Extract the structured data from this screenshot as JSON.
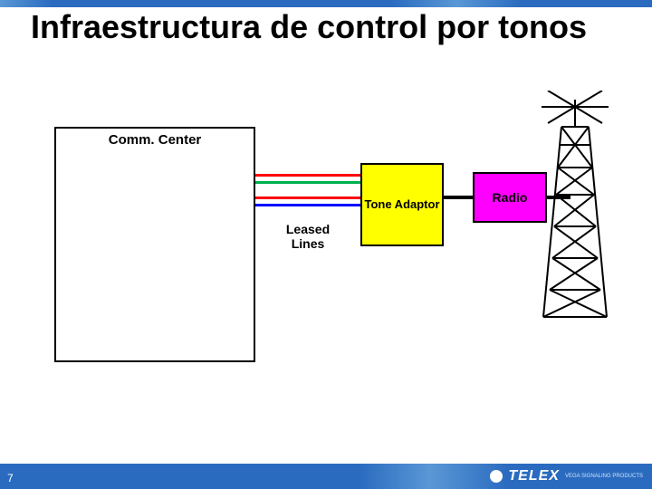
{
  "slide": {
    "title": "Infraestructura de control por tonos",
    "page_number": "7",
    "background_color": "#ffffff",
    "accent_bar_color": "#2a6bbf",
    "accent_bar_gradient_light": "#5a97d6",
    "text_color": "#000000"
  },
  "diagram": {
    "type": "network",
    "nodes": {
      "comm_center": {
        "label": "Comm. Center",
        "fill": "#ffffff",
        "border": "#000000",
        "font_size": 15
      },
      "tone_adaptor": {
        "label": "Tone Adaptor",
        "fill": "#ffff00",
        "border": "#000000",
        "font_size": 13
      },
      "radio": {
        "label": "Radio",
        "fill": "#ff00ff",
        "border": "#000000",
        "font_size": 14
      },
      "tower": {
        "label": "",
        "stroke": "#000000"
      }
    },
    "leased_lines": {
      "label": "Leased Lines",
      "count": 4,
      "colors": [
        "#ff0000",
        "#00b050",
        "#ff0000",
        "#0000ff"
      ],
      "line_width": 3
    },
    "connectors": {
      "adaptor_to_radio": {
        "color": "#000000",
        "width": 4
      },
      "radio_to_tower": {
        "color": "#000000",
        "width": 4
      }
    }
  },
  "branding": {
    "logo_text": "TELEX",
    "tagline_line1": "VEGA SIGNALING PRODUCTS",
    "bar_color": "#2a6bbf"
  }
}
